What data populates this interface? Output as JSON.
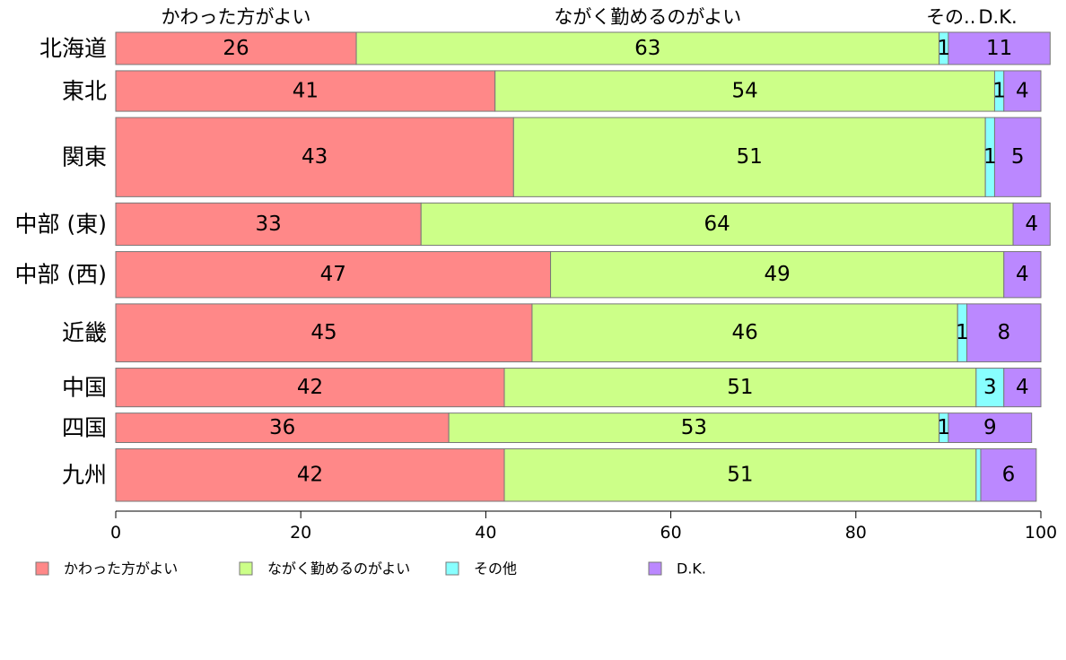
{
  "chart_data": {
    "type": "bar",
    "orientation": "horizontal",
    "stacked": true,
    "variable_width": true,
    "categories": [
      "北海道",
      "東北",
      "関東",
      "中部 (東)",
      "中部 (西)",
      "近畿",
      "中国",
      "四国",
      "九州"
    ],
    "series": [
      {
        "name": "かわった方がよい",
        "color": "#ff8888",
        "values": [
          26,
          41,
          43,
          33,
          47,
          45,
          42,
          36,
          42
        ]
      },
      {
        "name": "ながく勤めるのがよい",
        "color": "#ccff88",
        "values": [
          63,
          54,
          51,
          64,
          49,
          46,
          51,
          53,
          51
        ]
      },
      {
        "name": "その他",
        "color": "#88ffff",
        "values": [
          1,
          1,
          1,
          0,
          0,
          1,
          3,
          1,
          0.5
        ]
      },
      {
        "name": "D.K.",
        "color": "#bb88ff",
        "values": [
          11,
          4,
          5,
          4,
          4,
          8,
          4,
          9,
          6
        ]
      }
    ],
    "segment_labels": [
      [
        "26",
        "63",
        "1",
        "11"
      ],
      [
        "41",
        "54",
        "1",
        "4"
      ],
      [
        "43",
        "51",
        "1",
        "5"
      ],
      [
        "33",
        "64",
        "",
        "4"
      ],
      [
        "47",
        "49",
        "",
        "4"
      ],
      [
        "45",
        "46",
        "1",
        "8"
      ],
      [
        "42",
        "51",
        "3",
        "4"
      ],
      [
        "36",
        "53",
        "1",
        "9"
      ],
      [
        "42",
        "51",
        "",
        "6"
      ]
    ],
    "row_weights": [
      35,
      44,
      86,
      46,
      50,
      63,
      42,
      32,
      57
    ],
    "top_labels": [
      "かわった方がよい",
      "ながく勤めるのがよい",
      "その..",
      "D.K."
    ],
    "x_ticks": [
      0,
      20,
      40,
      60,
      80,
      100
    ],
    "xlim": [
      0,
      100
    ],
    "grid": false,
    "legend_position": "bottom"
  }
}
